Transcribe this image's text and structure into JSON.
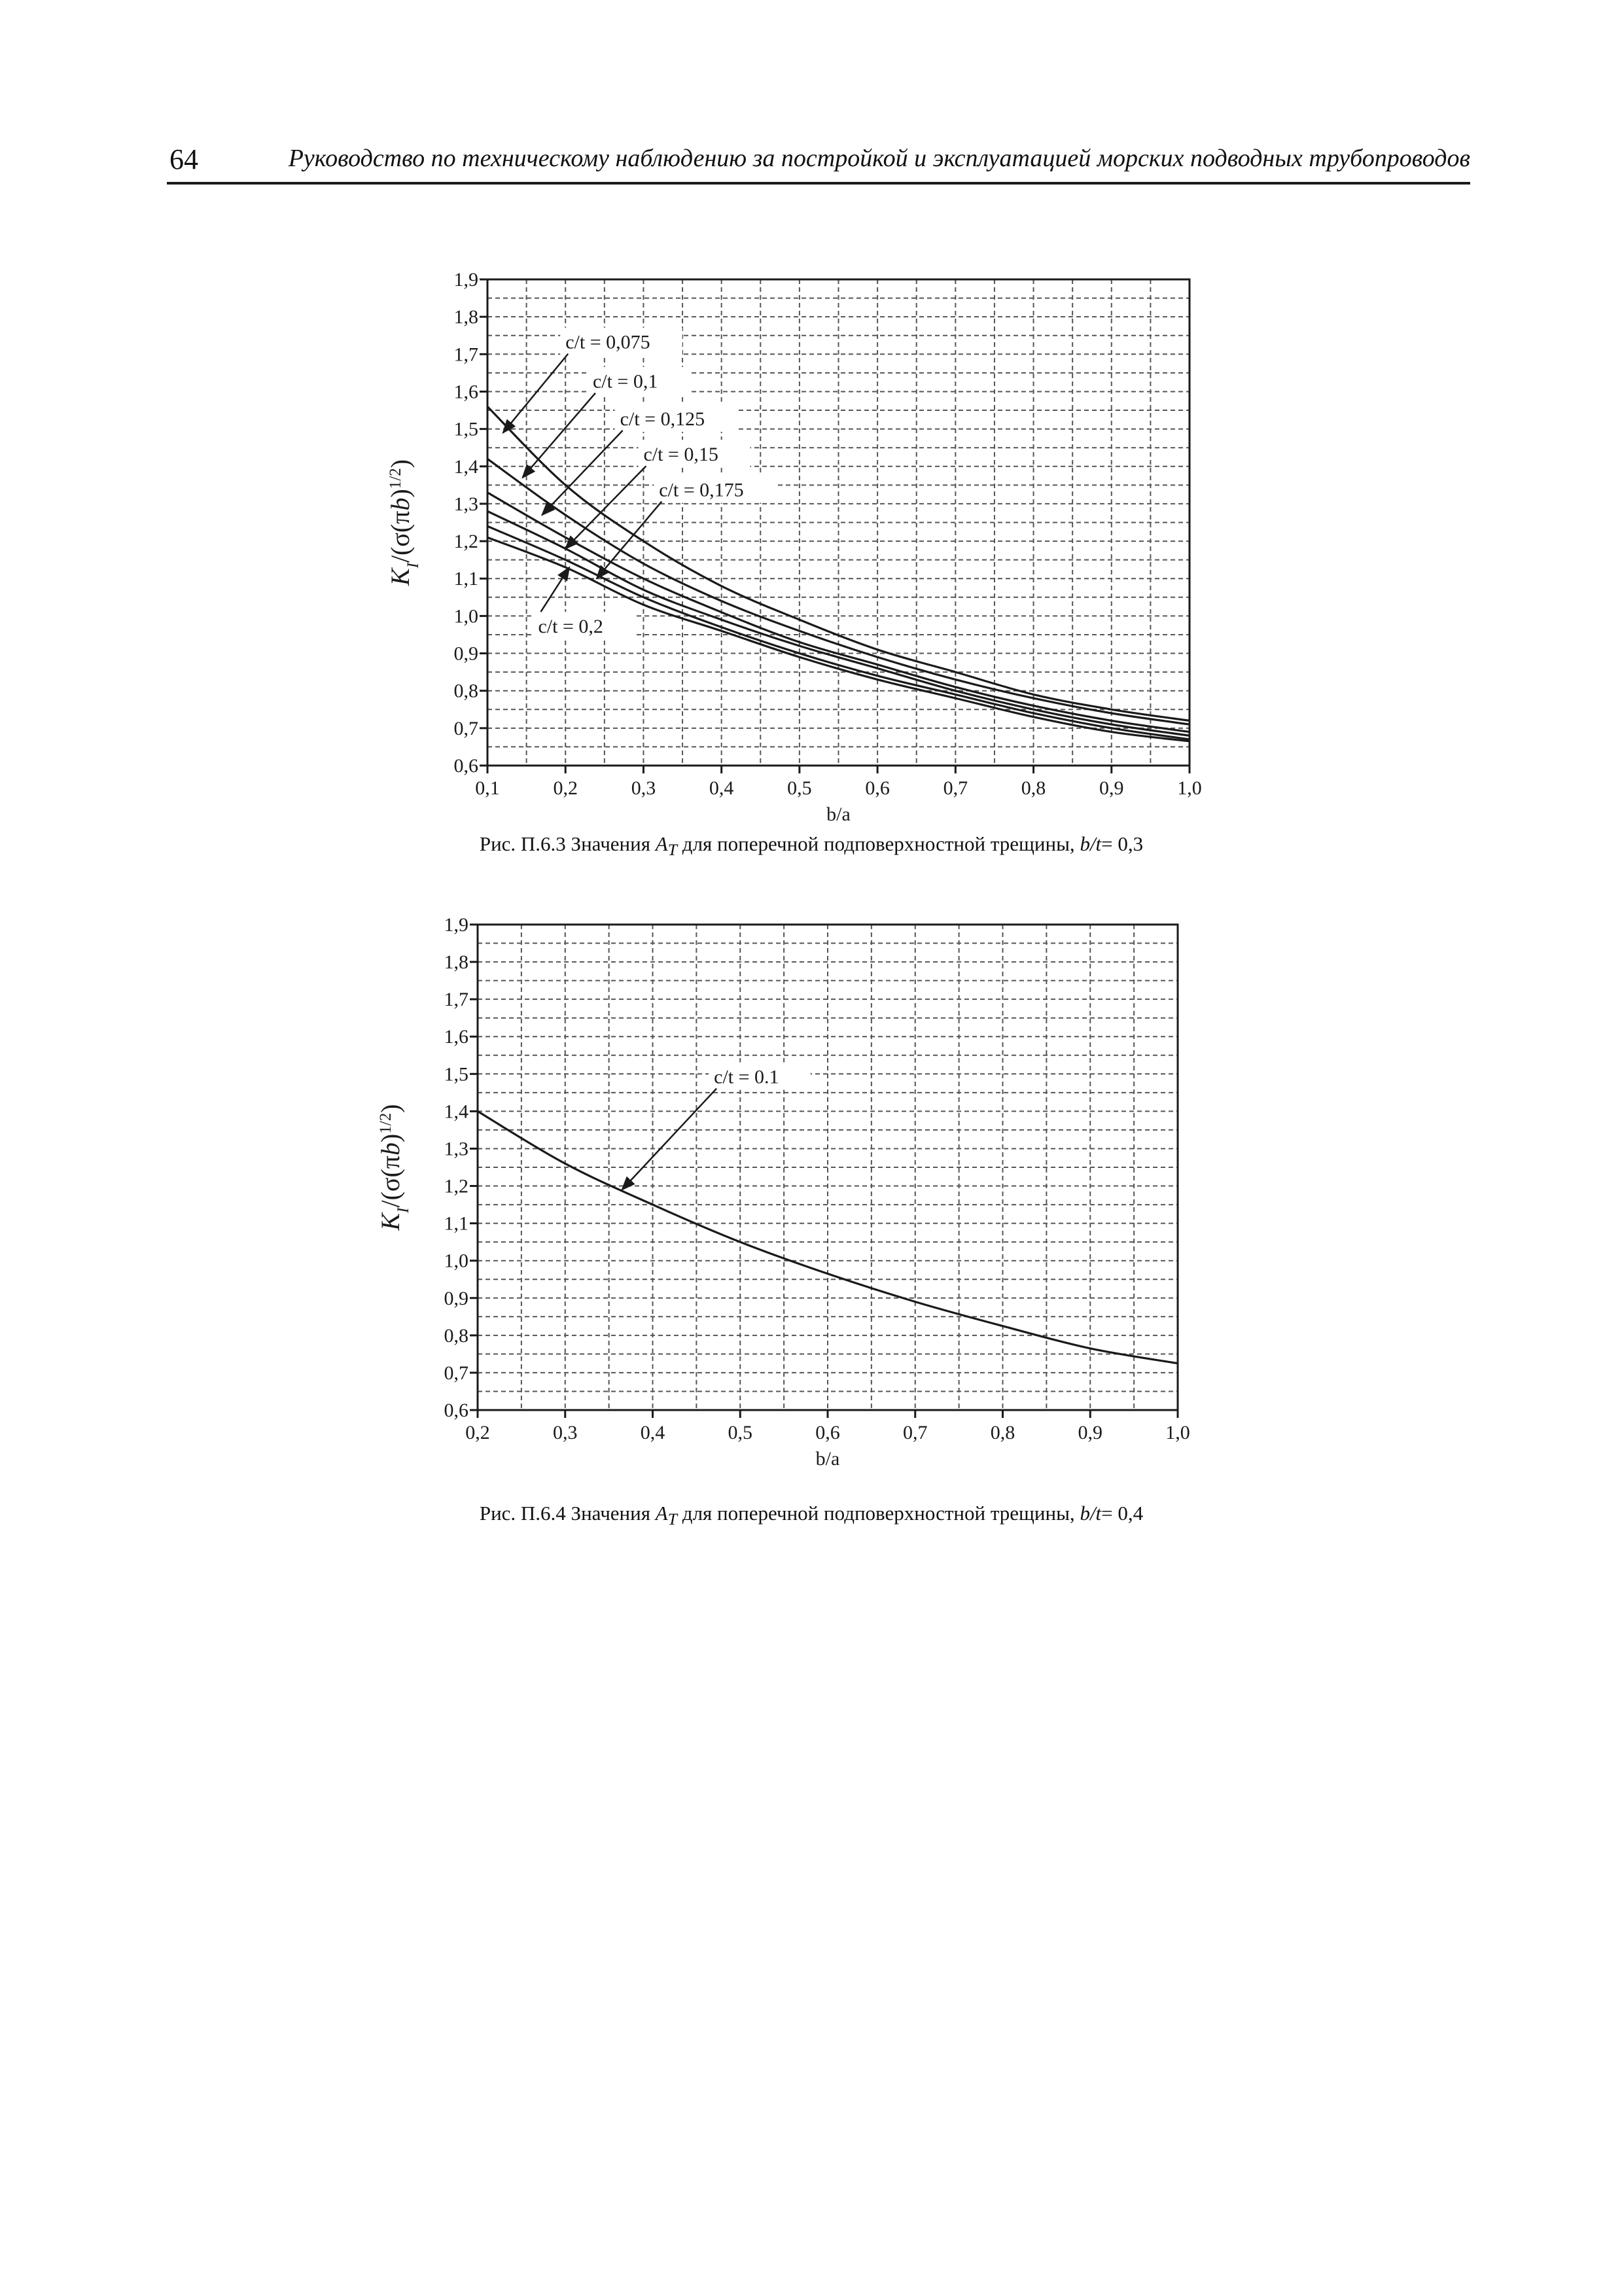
{
  "header": {
    "page_number": "64",
    "title": "Руководство по техническому наблюдению за постройкой и эксплуатацией морских подводных трубопроводов"
  },
  "figures": [
    {
      "caption": {
        "prefix": "Рис. П.6.3 Значения ",
        "symbol": "A",
        "symbol_sub": "T",
        "middle": " для поперечной подповерхностной трещины, ",
        "param": "b/t",
        "suffix": "= 0,3"
      }
    },
    {
      "caption": {
        "prefix": "Рис. П.6.4 Значения ",
        "symbol": "A",
        "symbol_sub": "T",
        "middle": " для поперечной подповерхностной трещины, ",
        "param": "b/t",
        "suffix": "= 0,4"
      }
    }
  ],
  "chart_data": [
    {
      "type": "line",
      "xlabel": "b/a",
      "ylabel": {
        "k": "K",
        "k_sub": "I",
        "body": "/(σ(π",
        "b": "b",
        "close": ")",
        "sup": "1/2",
        "end": ")"
      },
      "xlim": [
        0.1,
        1.0
      ],
      "ylim": [
        0.6,
        1.9
      ],
      "x_ticks": [
        0.1,
        0.2,
        0.3,
        0.4,
        0.5,
        0.6,
        0.7,
        0.8,
        0.9,
        1.0
      ],
      "x_tick_labels": [
        "0,1",
        "0,2",
        "0,3",
        "0,4",
        "0,5",
        "0,6",
        "0,7",
        "0,8",
        "0,9",
        "1,0"
      ],
      "y_ticks": [
        0.6,
        0.7,
        0.8,
        0.9,
        1.0,
        1.1,
        1.2,
        1.3,
        1.4,
        1.5,
        1.6,
        1.7,
        1.8,
        1.9
      ],
      "y_tick_labels": [
        "0,6",
        "0,7",
        "0,8",
        "0,9",
        "1,0",
        "1,1",
        "1,2",
        "1,3",
        "1,4",
        "1,5",
        "1,6",
        "1,7",
        "1,8",
        "1,9"
      ],
      "grid": true,
      "series": [
        {
          "name": "c/t = 0,075",
          "x": [
            0.1,
            0.2,
            0.3,
            0.4,
            0.5,
            0.6,
            0.7,
            0.8,
            0.9,
            1.0
          ],
          "y": [
            1.56,
            1.35,
            1.2,
            1.08,
            0.99,
            0.91,
            0.85,
            0.79,
            0.75,
            0.72
          ],
          "label_at": [
            0.2,
            1.715
          ],
          "arrow_to": [
            0.12,
            1.49
          ]
        },
        {
          "name": "c/t = 0,1",
          "x": [
            0.1,
            0.2,
            0.3,
            0.4,
            0.5,
            0.6,
            0.7,
            0.8,
            0.9,
            1.0
          ],
          "y": [
            1.42,
            1.27,
            1.14,
            1.04,
            0.96,
            0.89,
            0.83,
            0.78,
            0.74,
            0.71
          ],
          "label_at": [
            0.235,
            1.61
          ],
          "arrow_to": [
            0.145,
            1.37
          ]
        },
        {
          "name": "c/t = 0,125",
          "x": [
            0.1,
            0.2,
            0.3,
            0.4,
            0.5,
            0.6,
            0.7,
            0.8,
            0.9,
            1.0
          ],
          "y": [
            1.33,
            1.21,
            1.1,
            1.01,
            0.93,
            0.87,
            0.81,
            0.76,
            0.72,
            0.69
          ],
          "label_at": [
            0.27,
            1.51
          ],
          "arrow_to": [
            0.17,
            1.27
          ]
        },
        {
          "name": "c/t = 0,15",
          "x": [
            0.1,
            0.2,
            0.3,
            0.4,
            0.5,
            0.6,
            0.7,
            0.8,
            0.9,
            1.0
          ],
          "y": [
            1.28,
            1.18,
            1.07,
            0.99,
            0.92,
            0.86,
            0.8,
            0.75,
            0.71,
            0.68
          ],
          "label_at": [
            0.3,
            1.415
          ],
          "arrow_to": [
            0.2,
            1.18
          ]
        },
        {
          "name": "c/t = 0,175",
          "x": [
            0.1,
            0.2,
            0.3,
            0.4,
            0.5,
            0.6,
            0.7,
            0.8,
            0.9,
            1.0
          ],
          "y": [
            1.24,
            1.15,
            1.05,
            0.97,
            0.9,
            0.84,
            0.79,
            0.74,
            0.7,
            0.67
          ],
          "label_at": [
            0.32,
            1.32
          ],
          "arrow_to": [
            0.24,
            1.1
          ]
        },
        {
          "name": "c/t = 0,2",
          "x": [
            0.1,
            0.2,
            0.3,
            0.4,
            0.5,
            0.6,
            0.7,
            0.8,
            0.9,
            1.0
          ],
          "y": [
            1.21,
            1.13,
            1.03,
            0.96,
            0.89,
            0.83,
            0.78,
            0.73,
            0.69,
            0.665
          ],
          "label_at": [
            0.165,
            0.955
          ],
          "arrow_to": [
            0.205,
            1.13
          ]
        }
      ]
    },
    {
      "type": "line",
      "xlabel": "b/a",
      "ylabel": {
        "k": "K",
        "k_sub": "I",
        "body": "/(σ(π",
        "b": "b",
        "close": ")",
        "sup": "1/2",
        "end": ")"
      },
      "xlim": [
        0.2,
        1.0
      ],
      "ylim": [
        0.6,
        1.9
      ],
      "x_ticks": [
        0.2,
        0.3,
        0.4,
        0.5,
        0.6,
        0.7,
        0.8,
        0.9,
        1.0
      ],
      "x_tick_labels": [
        "0,2",
        "0,3",
        "0,4",
        "0,5",
        "0,6",
        "0,7",
        "0,8",
        "0,9",
        "1,0"
      ],
      "y_ticks": [
        0.6,
        0.7,
        0.8,
        0.9,
        1.0,
        1.1,
        1.2,
        1.3,
        1.4,
        1.5,
        1.6,
        1.7,
        1.8,
        1.9
      ],
      "y_tick_labels": [
        "0,6",
        "0,7",
        "0,8",
        "0,9",
        "1,0",
        "1,1",
        "1,2",
        "1,3",
        "1,4",
        "1,5",
        "1,6",
        "1,7",
        "1,8",
        "1,9"
      ],
      "grid": true,
      "series": [
        {
          "name": "c/t = 0.1",
          "x": [
            0.2,
            0.3,
            0.4,
            0.5,
            0.6,
            0.7,
            0.8,
            0.9,
            1.0
          ],
          "y": [
            1.4,
            1.26,
            1.15,
            1.05,
            0.965,
            0.89,
            0.825,
            0.765,
            0.725
          ],
          "label_at": [
            0.47,
            1.475
          ],
          "arrow_to": [
            0.365,
            1.19
          ]
        }
      ]
    }
  ],
  "colors": {
    "ink": "#1a1a1a",
    "grid": "#555555",
    "background": "#ffffff"
  }
}
